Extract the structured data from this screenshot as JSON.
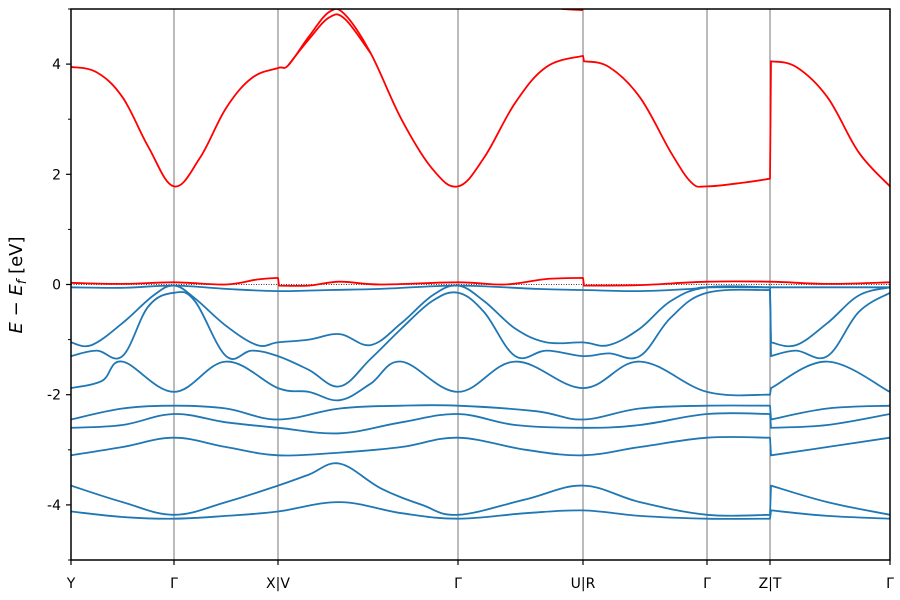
{
  "chart_data": {
    "type": "line",
    "title": "",
    "xlabel": "",
    "ylabel": "E − E_f [eV]",
    "ylabel_parts": {
      "main": "E − E",
      "sub": "f",
      "unit": " [eV]"
    },
    "ylim": [
      -5,
      5
    ],
    "yticks": [
      -4,
      -2,
      0,
      2,
      4
    ],
    "ytick_labels": [
      "-4",
      "-2",
      "0",
      "2",
      "4"
    ],
    "yminor_ticks": [
      -5,
      -3,
      -1,
      1,
      3,
      5
    ],
    "xticks": [
      0,
      1,
      2,
      3.75,
      4.95,
      6.15,
      6.75,
      7.9
    ],
    "xtick_labels": [
      "Y",
      "Γ",
      "X|V",
      "Γ",
      "U|R",
      "Γ",
      "Z|T",
      "Γ"
    ],
    "xlim": [
      0,
      7.9
    ],
    "fermi_level": 0,
    "grid": "vertical lines at high-symmetry points",
    "legend": "none",
    "colors": {
      "conduction": "#ff0000",
      "valence": "#1f77b4",
      "vline": "#555555",
      "fermi": "#000000"
    },
    "series": [
      {
        "name": "conduction band 1",
        "color": "#ff0000",
        "points": [
          [
            0,
            3.95
          ],
          [
            0.25,
            3.85
          ],
          [
            0.5,
            3.4
          ],
          [
            0.75,
            2.5
          ],
          [
            1,
            1.78
          ],
          [
            1.25,
            2.3
          ],
          [
            1.5,
            3.2
          ],
          [
            1.75,
            3.75
          ],
          [
            2,
            3.93
          ],
          [
            2.1,
            3.98
          ],
          [
            2.3,
            4.5
          ],
          [
            2.5,
            4.95
          ],
          [
            2.65,
            4.9
          ],
          [
            2.9,
            4.2
          ],
          [
            3.2,
            3.0
          ],
          [
            3.5,
            2.1
          ],
          [
            3.75,
            1.78
          ],
          [
            4.0,
            2.3
          ],
          [
            4.3,
            3.3
          ],
          [
            4.6,
            3.95
          ],
          [
            4.95,
            4.15
          ],
          [
            4.96,
            4.05
          ],
          [
            5.2,
            3.95
          ],
          [
            5.5,
            3.4
          ],
          [
            5.8,
            2.4
          ],
          [
            6.0,
            1.85
          ],
          [
            6.15,
            1.78
          ],
          [
            6.5,
            1.85
          ],
          [
            6.75,
            1.92
          ],
          [
            6.76,
            4.05
          ],
          [
            7.0,
            3.95
          ],
          [
            7.3,
            3.4
          ],
          [
            7.6,
            2.4
          ],
          [
            7.9,
            1.78
          ]
        ]
      },
      {
        "name": "conduction band 2",
        "color": "#ff0000",
        "points": [
          [
            2.1,
            3.98
          ],
          [
            2.3,
            4.45
          ],
          [
            2.5,
            4.85
          ],
          [
            2.65,
            4.82
          ],
          [
            2.9,
            4.2
          ]
        ]
      },
      {
        "name": "conduction band top edge",
        "color": "#ff0000",
        "points": [
          [
            4.75,
            5.0
          ],
          [
            4.95,
            4.98
          ]
        ]
      },
      {
        "name": "conduction band near Ef",
        "color": "#ff0000",
        "points": [
          [
            0,
            0.03
          ],
          [
            0.5,
            0.01
          ],
          [
            1,
            0.04
          ],
          [
            1.5,
            0.0
          ],
          [
            1.8,
            0.09
          ],
          [
            2,
            0.12
          ],
          [
            2.01,
            -0.02
          ],
          [
            2.3,
            -0.02
          ],
          [
            2.6,
            0.05
          ],
          [
            3.0,
            0.0
          ],
          [
            3.75,
            0.04
          ],
          [
            4.2,
            0.0
          ],
          [
            4.6,
            0.1
          ],
          [
            4.95,
            0.12
          ],
          [
            4.96,
            -0.02
          ],
          [
            5.5,
            -0.01
          ],
          [
            6.15,
            0.05
          ],
          [
            6.75,
            0.05
          ],
          [
            7.3,
            0.01
          ],
          [
            7.9,
            0.04
          ]
        ]
      },
      {
        "name": "valence band 1",
        "color": "#1f77b4",
        "points": [
          [
            0,
            -0.05
          ],
          [
            0.5,
            -0.06
          ],
          [
            1,
            -0.02
          ],
          [
            1.5,
            -0.08
          ],
          [
            2,
            -0.12
          ],
          [
            2.5,
            -0.1
          ],
          [
            3.0,
            -0.08
          ],
          [
            3.75,
            -0.02
          ],
          [
            4.5,
            -0.08
          ],
          [
            4.95,
            -0.1
          ],
          [
            5.5,
            -0.12
          ],
          [
            6.0,
            -0.08
          ],
          [
            6.15,
            -0.05
          ],
          [
            6.75,
            -0.05
          ],
          [
            7.9,
            -0.05
          ]
        ]
      },
      {
        "name": "valence band 2",
        "color": "#1f77b4",
        "points": [
          [
            0,
            -1.05
          ],
          [
            0.2,
            -1.1
          ],
          [
            0.5,
            -0.7
          ],
          [
            0.8,
            -0.2
          ],
          [
            1,
            -0.02
          ],
          [
            1.2,
            -0.25
          ],
          [
            1.5,
            -0.75
          ],
          [
            1.8,
            -1.1
          ],
          [
            2,
            -1.05
          ],
          [
            2.3,
            -1.0
          ],
          [
            2.6,
            -0.9
          ],
          [
            2.9,
            -1.1
          ],
          [
            3.2,
            -0.7
          ],
          [
            3.5,
            -0.2
          ],
          [
            3.75,
            -0.02
          ],
          [
            4.0,
            -0.3
          ],
          [
            4.3,
            -0.8
          ],
          [
            4.6,
            -1.05
          ],
          [
            4.95,
            -1.05
          ],
          [
            5.2,
            -1.1
          ],
          [
            5.5,
            -0.8
          ],
          [
            5.8,
            -0.3
          ],
          [
            6.15,
            -0.05
          ],
          [
            6.75,
            -0.05
          ],
          [
            6.76,
            -1.05
          ],
          [
            7.0,
            -1.1
          ],
          [
            7.3,
            -0.7
          ],
          [
            7.6,
            -0.2
          ],
          [
            7.9,
            -0.05
          ]
        ]
      },
      {
        "name": "valence band 3",
        "color": "#1f77b4",
        "points": [
          [
            0,
            -1.3
          ],
          [
            0.25,
            -1.2
          ],
          [
            0.5,
            -1.3
          ],
          [
            0.75,
            -0.4
          ],
          [
            1,
            -0.15
          ],
          [
            1.2,
            -0.3
          ],
          [
            1.5,
            -1.3
          ],
          [
            1.75,
            -1.2
          ],
          [
            2,
            -1.3
          ],
          [
            2.3,
            -1.55
          ],
          [
            2.6,
            -1.85
          ],
          [
            2.9,
            -1.35
          ],
          [
            3.2,
            -0.8
          ],
          [
            3.5,
            -0.3
          ],
          [
            3.75,
            -0.15
          ],
          [
            4.0,
            -0.5
          ],
          [
            4.3,
            -1.3
          ],
          [
            4.6,
            -1.2
          ],
          [
            4.95,
            -1.3
          ],
          [
            5.2,
            -1.25
          ],
          [
            5.5,
            -1.3
          ],
          [
            5.8,
            -0.6
          ],
          [
            6.15,
            -0.15
          ],
          [
            6.75,
            -0.1
          ],
          [
            6.76,
            -1.3
          ],
          [
            7.0,
            -1.2
          ],
          [
            7.3,
            -1.3
          ],
          [
            7.6,
            -0.5
          ],
          [
            7.9,
            -0.15
          ]
        ]
      },
      {
        "name": "valence band 4",
        "color": "#1f77b4",
        "points": [
          [
            0,
            -1.88
          ],
          [
            0.3,
            -1.75
          ],
          [
            0.5,
            -1.4
          ],
          [
            1,
            -1.95
          ],
          [
            1.5,
            -1.4
          ],
          [
            2,
            -1.88
          ],
          [
            2.3,
            -1.95
          ],
          [
            2.6,
            -2.1
          ],
          [
            2.9,
            -1.8
          ],
          [
            3.2,
            -1.4
          ],
          [
            3.75,
            -1.95
          ],
          [
            4.3,
            -1.4
          ],
          [
            4.95,
            -1.88
          ],
          [
            5.5,
            -1.4
          ],
          [
            6.15,
            -1.95
          ],
          [
            6.75,
            -2.0
          ],
          [
            6.76,
            -1.88
          ],
          [
            7.3,
            -1.4
          ],
          [
            7.9,
            -1.95
          ]
        ]
      },
      {
        "name": "valence band 5",
        "color": "#1f77b4",
        "points": [
          [
            0,
            -2.45
          ],
          [
            0.5,
            -2.25
          ],
          [
            1,
            -2.2
          ],
          [
            1.5,
            -2.25
          ],
          [
            2,
            -2.45
          ],
          [
            2.6,
            -2.25
          ],
          [
            3.2,
            -2.2
          ],
          [
            3.75,
            -2.2
          ],
          [
            4.5,
            -2.3
          ],
          [
            4.95,
            -2.45
          ],
          [
            5.5,
            -2.25
          ],
          [
            6.15,
            -2.2
          ],
          [
            6.75,
            -2.2
          ],
          [
            6.76,
            -2.45
          ],
          [
            7.3,
            -2.25
          ],
          [
            7.9,
            -2.2
          ]
        ]
      },
      {
        "name": "valence band 6",
        "color": "#1f77b4",
        "points": [
          [
            0,
            -2.6
          ],
          [
            0.5,
            -2.55
          ],
          [
            1,
            -2.35
          ],
          [
            1.5,
            -2.5
          ],
          [
            2,
            -2.6
          ],
          [
            2.6,
            -2.7
          ],
          [
            3.2,
            -2.5
          ],
          [
            3.75,
            -2.35
          ],
          [
            4.3,
            -2.55
          ],
          [
            4.95,
            -2.6
          ],
          [
            5.5,
            -2.55
          ],
          [
            6.15,
            -2.35
          ],
          [
            6.75,
            -2.35
          ],
          [
            6.76,
            -2.6
          ],
          [
            7.3,
            -2.55
          ],
          [
            7.9,
            -2.35
          ]
        ]
      },
      {
        "name": "valence band 7",
        "color": "#1f77b4",
        "points": [
          [
            0,
            -3.1
          ],
          [
            0.5,
            -2.95
          ],
          [
            1,
            -2.78
          ],
          [
            1.5,
            -2.95
          ],
          [
            2,
            -3.1
          ],
          [
            2.6,
            -3.05
          ],
          [
            3.2,
            -2.95
          ],
          [
            3.75,
            -2.78
          ],
          [
            4.4,
            -3.0
          ],
          [
            4.95,
            -3.1
          ],
          [
            5.5,
            -2.95
          ],
          [
            6.15,
            -2.78
          ],
          [
            6.75,
            -2.78
          ],
          [
            6.76,
            -3.1
          ],
          [
            7.3,
            -2.95
          ],
          [
            7.9,
            -2.78
          ]
        ]
      },
      {
        "name": "valence band 8",
        "color": "#1f77b4",
        "points": [
          [
            0,
            -3.65
          ],
          [
            0.5,
            -3.95
          ],
          [
            1,
            -4.18
          ],
          [
            1.5,
            -3.95
          ],
          [
            2,
            -3.65
          ],
          [
            2.3,
            -3.45
          ],
          [
            2.6,
            -3.25
          ],
          [
            3.0,
            -3.7
          ],
          [
            3.4,
            -4.0
          ],
          [
            3.75,
            -4.18
          ],
          [
            4.4,
            -3.9
          ],
          [
            4.95,
            -3.65
          ],
          [
            5.5,
            -3.95
          ],
          [
            6.15,
            -4.18
          ],
          [
            6.75,
            -4.18
          ],
          [
            6.76,
            -3.65
          ],
          [
            7.3,
            -3.95
          ],
          [
            7.9,
            -4.18
          ]
        ]
      },
      {
        "name": "valence band 9",
        "color": "#1f77b4",
        "points": [
          [
            0,
            -4.12
          ],
          [
            0.5,
            -4.22
          ],
          [
            1,
            -4.25
          ],
          [
            1.5,
            -4.2
          ],
          [
            2,
            -4.12
          ],
          [
            2.6,
            -3.95
          ],
          [
            3.2,
            -4.15
          ],
          [
            3.75,
            -4.25
          ],
          [
            4.4,
            -4.15
          ],
          [
            4.95,
            -4.1
          ],
          [
            5.5,
            -4.2
          ],
          [
            6.15,
            -4.25
          ],
          [
            6.75,
            -4.25
          ],
          [
            6.76,
            -4.1
          ],
          [
            7.3,
            -4.2
          ],
          [
            7.9,
            -4.25
          ]
        ]
      }
    ]
  }
}
